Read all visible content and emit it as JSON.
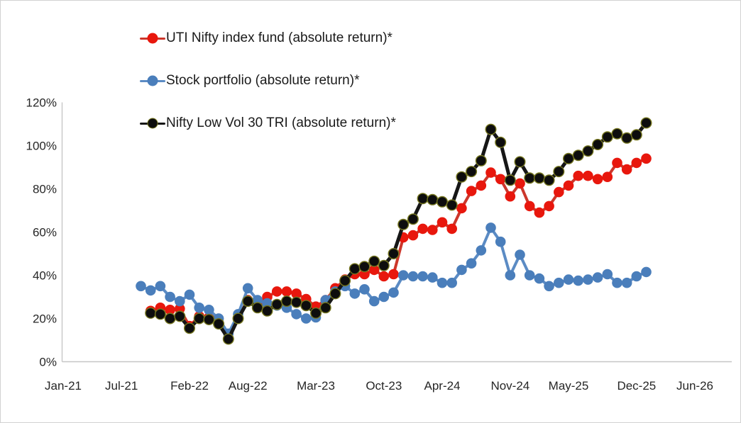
{
  "chart_data": {
    "type": "line",
    "title": "",
    "grid": false,
    "legend_position": "top-left inside, vertical",
    "background_color": "#ffffff",
    "axis_color": "#c6c6c6",
    "tick_text_color": "#262626",
    "ylim": [
      0,
      120
    ],
    "y_axis_format": "percent",
    "y_ticks": [
      {
        "label": "0%",
        "value": 0
      },
      {
        "label": "20%",
        "value": 20
      },
      {
        "label": "40%",
        "value": 40
      },
      {
        "label": "60%",
        "value": 60
      },
      {
        "label": "80%",
        "value": 80
      },
      {
        "label": "100%",
        "value": 100
      },
      {
        "label": "120%",
        "value": 120
      }
    ],
    "x_ticks": [
      {
        "label": "Jan-21",
        "month_index": 0
      },
      {
        "label": "Jul-21",
        "month_index": 6
      },
      {
        "label": "Feb-22",
        "month_index": 13
      },
      {
        "label": "Aug-22",
        "month_index": 19
      },
      {
        "label": "Mar-23",
        "month_index": 26
      },
      {
        "label": "Oct-23",
        "month_index": 33
      },
      {
        "label": "Apr-24",
        "month_index": 39
      },
      {
        "label": "Nov-24",
        "month_index": 46
      },
      {
        "label": "May-25",
        "month_index": 52
      },
      {
        "label": "Dec-25",
        "month_index": 59
      },
      {
        "label": "Jun-26",
        "month_index": 65
      }
    ],
    "start_month": "Sep-21",
    "start_month_index": 8,
    "categories": [
      "Sep-21",
      "Oct-21",
      "Nov-21",
      "Dec-21",
      "Jan-22",
      "Feb-22",
      "Mar-22",
      "Apr-22",
      "May-22",
      "Jun-22",
      "Jul-22",
      "Aug-22",
      "Sep-22",
      "Oct-22",
      "Nov-22",
      "Dec-22",
      "Jan-23",
      "Feb-23",
      "Mar-23",
      "Apr-23",
      "May-23",
      "Jun-23",
      "Jul-23",
      "Aug-23",
      "Sep-23",
      "Oct-23",
      "Nov-23",
      "Dec-23",
      "Jan-24",
      "Feb-24",
      "Mar-24",
      "Apr-24",
      "May-24",
      "Jun-24",
      "Jul-24",
      "Aug-24",
      "Sep-24",
      "Oct-24",
      "Nov-24",
      "Dec-24",
      "Jan-25",
      "Feb-25",
      "Mar-25",
      "Apr-25",
      "May-25",
      "Jun-25",
      "Jul-25",
      "Aug-25",
      "Sep-25",
      "Oct-25",
      "Nov-25",
      "Dec-25",
      "Jan-26"
    ],
    "series": [
      {
        "name": "UTI Nifty index fund (absolute return)*",
        "marker_color": "#e8170d",
        "line_color": "#cc372b",
        "marker_outline": "",
        "line_width": 4,
        "marker_radius": 7.3,
        "values": [
          null,
          23.5,
          25,
          24,
          24.5,
          16.5,
          21,
          20.5,
          18,
          11,
          20.5,
          28.5,
          27,
          30,
          32.5,
          32.5,
          31.5,
          29,
          25.5,
          28.5,
          34,
          38,
          40.5,
          40.5,
          42.5,
          39.5,
          40.5,
          57.5,
          58.5,
          61.5,
          61,
          64.5,
          61.5,
          71,
          79,
          81.5,
          87.5,
          84.5,
          76.5,
          82.5,
          72,
          69,
          72,
          78.5,
          81.5,
          86,
          86,
          84.5,
          85.5,
          92,
          89,
          92,
          94
        ]
      },
      {
        "name": "Stock portfolio (absolute return)*",
        "marker_color": "#4a7ebb",
        "line_color": "#5b8bc4",
        "marker_outline": "",
        "line_width": 4,
        "marker_radius": 7.3,
        "values": [
          35,
          33,
          35,
          30,
          28,
          31,
          25,
          24,
          20,
          13,
          22,
          34,
          28.5,
          27,
          26,
          25,
          22,
          20,
          20.5,
          28.5,
          32.5,
          35,
          31.5,
          33.5,
          28,
          30,
          32,
          40,
          39.5,
          39.5,
          39,
          36.5,
          36.5,
          42.5,
          45.5,
          51.5,
          62,
          55.5,
          40,
          49.5,
          40,
          38.5,
          35,
          36.5,
          38,
          37.5,
          38,
          39,
          40.5,
          36.5,
          36.5,
          39.5,
          41.5
        ]
      },
      {
        "name": "Nifty Low Vol 30 TRI (absolute return)*",
        "marker_color": "#0d0d0d",
        "line_color": "#161616",
        "marker_outline": "#75761f",
        "line_width": 5,
        "marker_radius": 7.3,
        "values": [
          null,
          22.5,
          22,
          20,
          21,
          15.5,
          20,
          19.5,
          17.5,
          10.5,
          20,
          28,
          25,
          23.5,
          26.5,
          28,
          27.5,
          26,
          22.5,
          25,
          31.5,
          37.5,
          43,
          44,
          46.5,
          44.5,
          50,
          63.5,
          66,
          75.5,
          75,
          74,
          72.5,
          85.5,
          88,
          93,
          107.5,
          101.5,
          84,
          92.5,
          85,
          85,
          84,
          88,
          94,
          95.5,
          97.5,
          100.5,
          104,
          105.5,
          103.5,
          105,
          110.5
        ]
      }
    ]
  }
}
